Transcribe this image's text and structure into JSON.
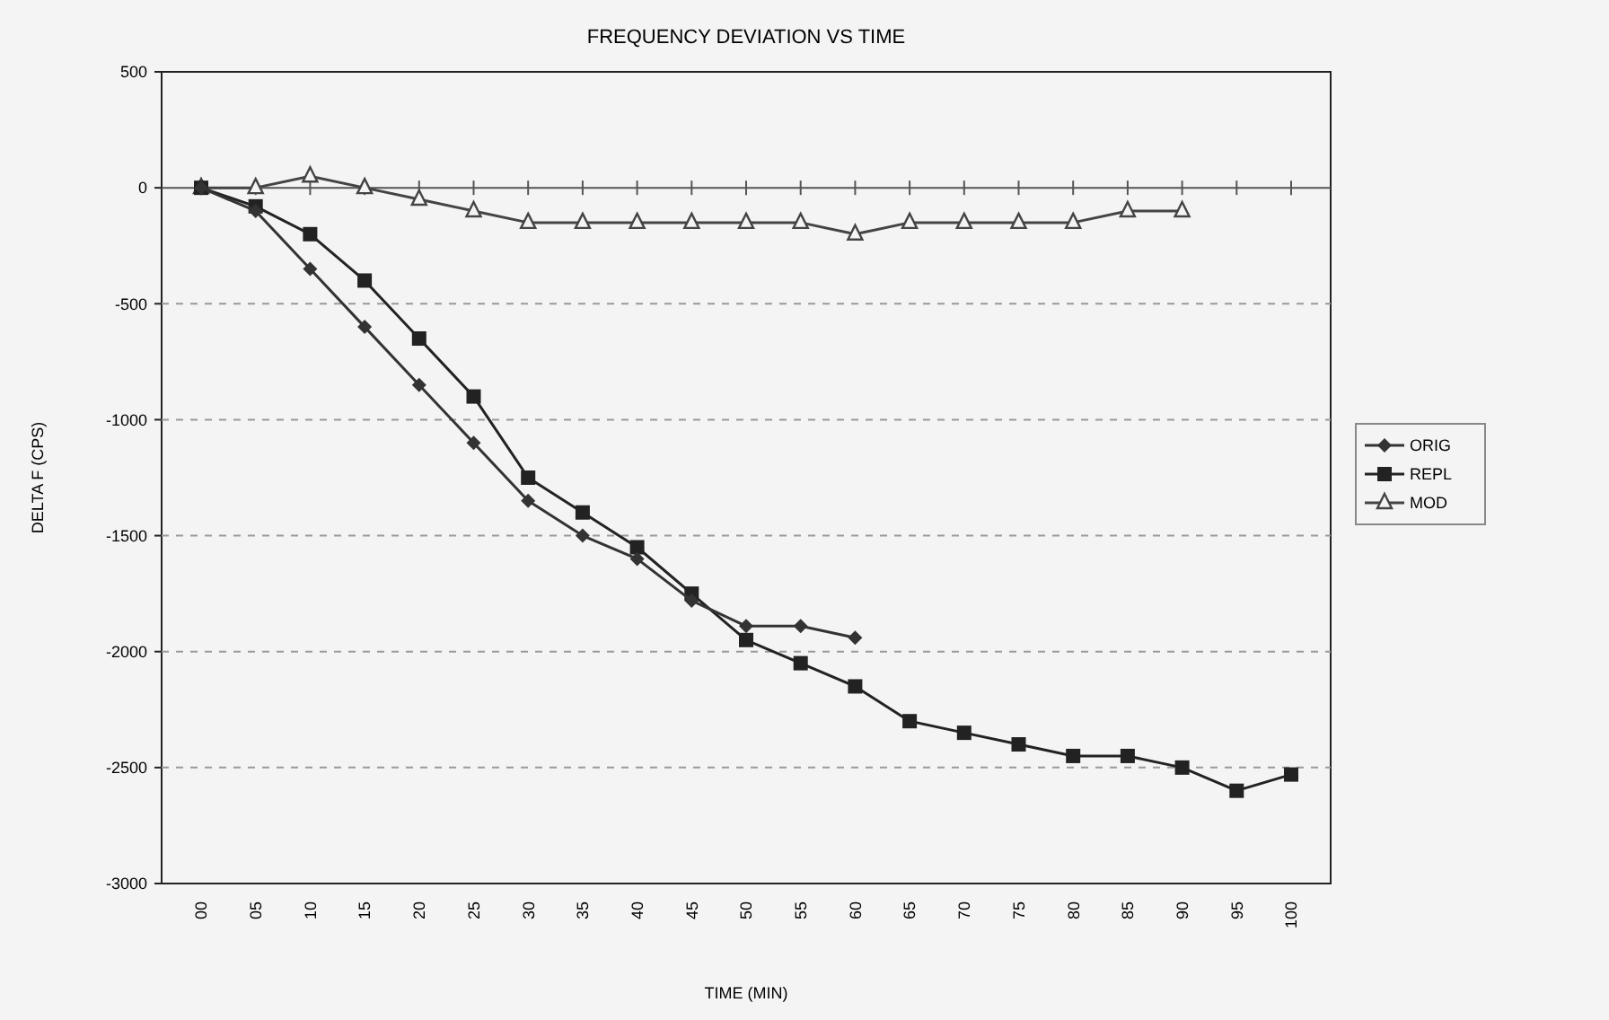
{
  "chart_data": {
    "type": "line",
    "title": "FREQUENCY DEVIATION VS TIME",
    "xlabel": "TIME (MIN)",
    "ylabel": "DELTA F (CPS)",
    "categories": [
      "00",
      "05",
      "10",
      "15",
      "20",
      "25",
      "30",
      "35",
      "40",
      "45",
      "50",
      "55",
      "60",
      "65",
      "70",
      "75",
      "80",
      "85",
      "90",
      "95",
      "100"
    ],
    "ylim": [
      -3000,
      500
    ],
    "yticks": [
      -3000,
      -2500,
      -2000,
      -1500,
      -1000,
      -500,
      0,
      500
    ],
    "grid": "y",
    "legend": "right",
    "line_style": "solid",
    "series": [
      {
        "name": "ORIG",
        "color": "#333333",
        "marker": "diamond",
        "values": [
          0,
          -100,
          -350,
          -600,
          -850,
          -1100,
          -1350,
          -1500,
          -1600,
          -1780,
          -1890,
          -1890,
          -1940,
          null,
          null,
          null,
          null,
          null,
          null,
          null,
          null
        ]
      },
      {
        "name": "REPL",
        "color": "#222222",
        "marker": "square",
        "values": [
          0,
          -80,
          -200,
          -400,
          -650,
          -900,
          -1250,
          -1400,
          -1550,
          -1750,
          -1950,
          -2050,
          -2150,
          -2300,
          -2350,
          -2400,
          -2450,
          -2450,
          -2500,
          -2600,
          -2530
        ]
      },
      {
        "name": "MOD",
        "color": "#444444",
        "marker": "triangle",
        "values": [
          0,
          0,
          50,
          0,
          -50,
          -100,
          -150,
          -150,
          -150,
          -150,
          -150,
          -150,
          -200,
          -150,
          -150,
          -150,
          -150,
          -100,
          -100,
          null,
          null
        ]
      }
    ]
  }
}
